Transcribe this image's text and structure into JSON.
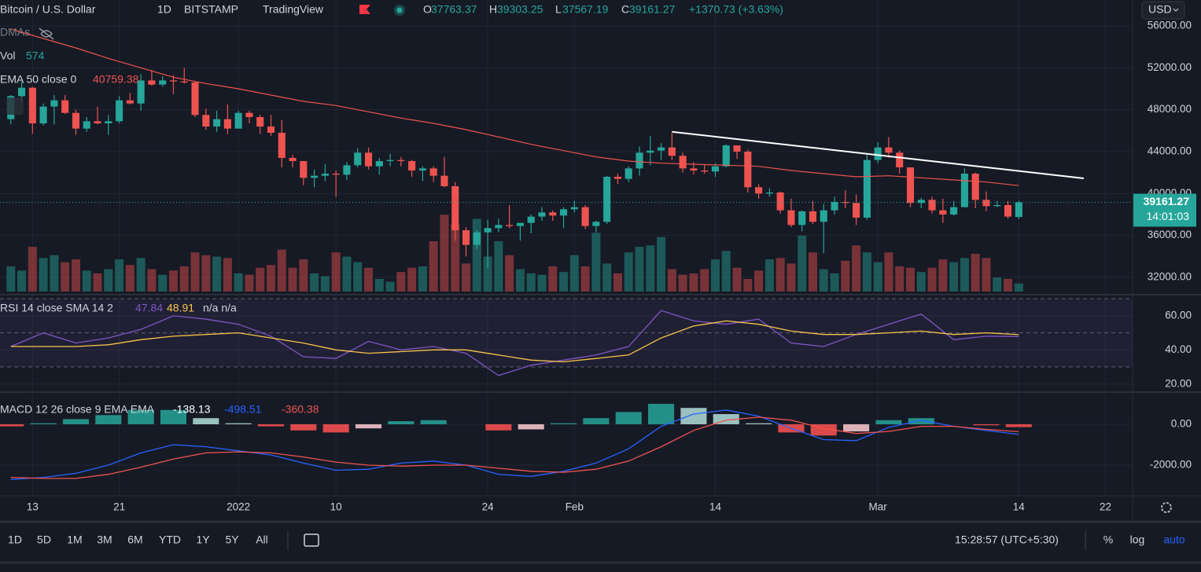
{
  "header": {
    "symbol": "Bitcoin / U.S. Dollar",
    "interval": "1D",
    "exchange": "BITSTAMP",
    "source": "TradingView",
    "ohlc": [
      {
        "label": "O",
        "value": "37763.37"
      },
      {
        "label": "H",
        "value": "39303.25"
      },
      {
        "label": "L",
        "value": "37567.19"
      },
      {
        "label": "C",
        "value": "39161.27"
      }
    ],
    "change": "+1370.73 (+3.63%)",
    "currency": "USD"
  },
  "toolbar": {
    "ranges": [
      "1D",
      "5D",
      "1M",
      "3M",
      "6M",
      "YTD",
      "1Y",
      "5Y",
      "All"
    ],
    "clock": "15:28:57 (UTC+5:30)",
    "scale_buttons": [
      "%",
      "log",
      "auto"
    ]
  },
  "chart_data": [
    {
      "type": "candlestick",
      "legends": [
        {
          "label": "DMAs"
        },
        {
          "label": "Vol",
          "value": "574"
        },
        {
          "label": "EMA 50 close 0",
          "value": "40759.38"
        }
      ],
      "last_price_label": "39161.27",
      "countdown": "14:01:03",
      "xlim": [
        -3,
        101.5
      ],
      "xticks": [
        {
          "value": 0,
          "label": "13"
        },
        {
          "value": 8,
          "label": "21"
        },
        {
          "value": 19,
          "label": "2022"
        },
        {
          "value": 28,
          "label": "10"
        },
        {
          "value": 42,
          "label": "24"
        },
        {
          "value": 50,
          "label": "Feb"
        },
        {
          "value": 63,
          "label": "14"
        },
        {
          "value": 78,
          "label": "Mar"
        },
        {
          "value": 91,
          "label": "14"
        },
        {
          "value": 99,
          "label": "22"
        }
      ],
      "ylim": [
        30575,
        58475
      ],
      "yticks": [
        {
          "value": 56000,
          "label": "56000.00"
        },
        {
          "value": 52000,
          "label": "52000.00"
        },
        {
          "value": 48000,
          "label": "48000.00"
        },
        {
          "value": 44000,
          "label": "44000.00"
        },
        {
          "value": 40000,
          "label": "40000.00"
        },
        {
          "value": 36000,
          "label": "36000.00"
        },
        {
          "value": 32000,
          "label": "32000.00"
        }
      ],
      "up_color": "#26a69a",
      "down_color": "#ef5350",
      "vlim": [
        0,
        9000
      ],
      "x": [
        -2,
        -1,
        0,
        1,
        2,
        3,
        4,
        5,
        6,
        7,
        8,
        9,
        10,
        11,
        12,
        13,
        14,
        15,
        16,
        17,
        18,
        19,
        20,
        21,
        22,
        23,
        24,
        25,
        26,
        27,
        28,
        29,
        30,
        31,
        32,
        33,
        34,
        35,
        36,
        37,
        38,
        39,
        40,
        41,
        42,
        43,
        44,
        45,
        46,
        47,
        48,
        49,
        50,
        51,
        52,
        53,
        54,
        55,
        56,
        57,
        58,
        59,
        60,
        61,
        62,
        63,
        64,
        65,
        66,
        67,
        68,
        69,
        70,
        71,
        72,
        73,
        74,
        75,
        76,
        77,
        78,
        79,
        80,
        81,
        82,
        83,
        84,
        85,
        86,
        87,
        88,
        89,
        90,
        91
      ],
      "ohlc": [
        [
          47100,
          49400,
          46600,
          49300
        ],
        [
          49300,
          50700,
          48700,
          50100
        ],
        [
          50100,
          50200,
          45700,
          46700
        ],
        [
          46700,
          48600,
          46500,
          48300
        ],
        [
          48300,
          49400,
          46600,
          48900
        ],
        [
          48900,
          49400,
          47600,
          47700
        ],
        [
          47700,
          48000,
          45600,
          46200
        ],
        [
          46200,
          47300,
          45900,
          46900
        ],
        [
          46900,
          48300,
          46600,
          46700
        ],
        [
          46700,
          47500,
          45600,
          46900
        ],
        [
          46900,
          49300,
          46700,
          48900
        ],
        [
          48900,
          49600,
          48500,
          48600
        ],
        [
          48600,
          51400,
          47900,
          50800
        ],
        [
          50800,
          51800,
          50300,
          50400
        ],
        [
          50400,
          51200,
          50200,
          50800
        ],
        [
          50800,
          51300,
          49500,
          50700
        ],
        [
          50700,
          52000,
          50500,
          50600
        ],
        [
          50600,
          50700,
          47300,
          47500
        ],
        [
          47500,
          48100,
          46100,
          46400
        ],
        [
          46400,
          47900,
          45900,
          47100
        ],
        [
          47100,
          48500,
          45700,
          46200
        ],
        [
          46200,
          47900,
          46200,
          47700
        ],
        [
          47700,
          47900,
          46700,
          47300
        ],
        [
          47300,
          47500,
          45700,
          46400
        ],
        [
          46400,
          47500,
          45500,
          45800
        ],
        [
          45800,
          47000,
          42500,
          43400
        ],
        [
          43400,
          43700,
          42500,
          43100
        ],
        [
          43100,
          43100,
          40800,
          41500
        ],
        [
          41500,
          42300,
          40600,
          41700
        ],
        [
          41700,
          42800,
          41200,
          41900
        ],
        [
          41900,
          42200,
          39700,
          41800
        ],
        [
          41800,
          43000,
          41300,
          42700
        ],
        [
          42700,
          44300,
          42500,
          43900
        ],
        [
          43900,
          44400,
          42300,
          42600
        ],
        [
          42600,
          43400,
          41800,
          43100
        ],
        [
          43100,
          43800,
          42600,
          43200
        ],
        [
          43200,
          43500,
          42600,
          43100
        ],
        [
          43100,
          43200,
          41600,
          42200
        ],
        [
          42200,
          42600,
          41200,
          42400
        ],
        [
          42400,
          42600,
          41100,
          41700
        ],
        [
          41700,
          43500,
          40600,
          40700
        ],
        [
          40700,
          41100,
          35500,
          36500
        ],
        [
          36500,
          36800,
          34000,
          35100
        ],
        [
          35100,
          36500,
          34700,
          36300
        ],
        [
          36300,
          37500,
          32900,
          36700
        ],
        [
          36700,
          37600,
          36300,
          37000
        ],
        [
          37000,
          38900,
          36700,
          36900
        ],
        [
          36900,
          37200,
          35500,
          37200
        ],
        [
          37200,
          38000,
          36200,
          37800
        ],
        [
          37800,
          38700,
          37400,
          38200
        ],
        [
          38200,
          38400,
          37400,
          37900
        ],
        [
          37900,
          38700,
          36700,
          38500
        ],
        [
          38500,
          39300,
          38200,
          38700
        ],
        [
          38700,
          38900,
          36600,
          36900
        ],
        [
          36900,
          37400,
          36300,
          37300
        ],
        [
          37300,
          41700,
          37100,
          41600
        ],
        [
          41600,
          41900,
          40900,
          41400
        ],
        [
          41400,
          42600,
          41100,
          42400
        ],
        [
          42400,
          44500,
          41700,
          43900
        ],
        [
          43900,
          45500,
          42700,
          44100
        ],
        [
          44100,
          44800,
          43200,
          44400
        ],
        [
          44400,
          45800,
          43200,
          43600
        ],
        [
          43600,
          43900,
          42000,
          42400
        ],
        [
          42400,
          43000,
          41800,
          42200
        ],
        [
          42200,
          42800,
          41900,
          42100
        ],
        [
          42100,
          42900,
          41600,
          42600
        ],
        [
          42600,
          44700,
          42500,
          44600
        ],
        [
          44600,
          44600,
          43300,
          44000
        ],
        [
          44000,
          44200,
          40100,
          40600
        ],
        [
          40600,
          40900,
          39500,
          40000
        ],
        [
          40000,
          40500,
          39700,
          40100
        ],
        [
          40100,
          40200,
          38100,
          38400
        ],
        [
          38400,
          39500,
          36800,
          37000
        ],
        [
          37000,
          38400,
          36400,
          38300
        ],
        [
          38300,
          39300,
          37100,
          37300
        ],
        [
          37300,
          39000,
          34300,
          38400
        ],
        [
          38400,
          39700,
          38000,
          39200
        ],
        [
          39200,
          40300,
          38600,
          39100
        ],
        [
          39100,
          39900,
          37000,
          37700
        ],
        [
          37700,
          43800,
          37500,
          43200
        ],
        [
          43200,
          44900,
          42900,
          44400
        ],
        [
          44400,
          45400,
          43400,
          43900
        ],
        [
          43900,
          44100,
          41900,
          42500
        ],
        [
          42500,
          42500,
          38700,
          39100
        ],
        [
          39100,
          39600,
          38600,
          39400
        ],
        [
          39400,
          39700,
          38100,
          38400
        ],
        [
          38400,
          39500,
          37200,
          38000
        ],
        [
          38000,
          39300,
          37900,
          38700
        ],
        [
          38700,
          42400,
          38700,
          41900
        ],
        [
          41900,
          42000,
          38600,
          39400
        ],
        [
          39400,
          40200,
          38300,
          38800
        ],
        [
          38800,
          39300,
          38700,
          38900
        ],
        [
          38900,
          39300,
          37600,
          37800
        ],
        [
          37763.37,
          39303.25,
          37567.19,
          39161.27
        ]
      ],
      "volume": [
        1800,
        1500,
        3200,
        2400,
        2600,
        2100,
        2300,
        1500,
        1300,
        1600,
        2300,
        1900,
        2400,
        1600,
        1200,
        1500,
        1800,
        2800,
        2600,
        2500,
        2400,
        1300,
        1200,
        1700,
        1900,
        3000,
        1700,
        2300,
        1300,
        1100,
        2800,
        2500,
        2100,
        1700,
        900,
        700,
        1400,
        1700,
        1800,
        3600,
        5500,
        4800,
        2000,
        5200,
        2500,
        3600,
        2600,
        1600,
        1300,
        1200,
        1800,
        1400,
        2600,
        1800,
        4200,
        2000,
        1300,
        2800,
        3200,
        3300,
        3900,
        1600,
        1200,
        1300,
        1600,
        2300,
        2900,
        1700,
        900,
        1500,
        2300,
        2400,
        2000,
        4000,
        2800,
        1600,
        1300,
        2200,
        3300,
        2800,
        2100,
        2800,
        1800,
        1700,
        1400,
        1700,
        2300,
        2100,
        2400,
        2700,
        2400,
        1000,
        900,
        574
      ],
      "series": [
        {
          "color": "#ef5350",
          "x": [
            -2,
            1,
            4,
            7,
            10,
            13,
            16,
            19,
            22,
            25,
            28,
            31,
            34,
            37,
            40,
            43,
            46,
            49,
            52,
            55,
            58,
            61,
            64,
            67,
            70,
            73,
            76,
            79,
            82,
            85,
            88,
            91
          ],
          "values": [
            55700,
            54800,
            53900,
            52900,
            52000,
            51100,
            50500,
            50000,
            49400,
            48800,
            48400,
            47800,
            47200,
            46700,
            46100,
            45400,
            44700,
            44100,
            43500,
            43100,
            42900,
            42800,
            42700,
            42600,
            42200,
            41900,
            41600,
            41700,
            41500,
            41300,
            41100,
            40759.38
          ]
        },
        {
          "color": "#ffffff",
          "x": [
            59,
            97
          ],
          "values": [
            45900,
            41450
          ]
        }
      ]
    },
    {
      "type": "line",
      "title": "RSI 14 close SMA 14 2",
      "legend_values": [
        "47.84",
        "48.91",
        "n/a n/a"
      ],
      "xlim": [
        -3,
        101.5
      ],
      "ylim": [
        16.2,
        71.9
      ],
      "yticks": [
        {
          "value": 60,
          "label": "60.00"
        },
        {
          "value": 40,
          "label": "40.00"
        },
        {
          "value": 20,
          "label": "20.00"
        }
      ],
      "levels": [
        70,
        50,
        30
      ],
      "x": [
        -2,
        1,
        4,
        7,
        10,
        13,
        16,
        19,
        22,
        25,
        28,
        31,
        34,
        37,
        40,
        43,
        46,
        49,
        52,
        55,
        58,
        61,
        64,
        67,
        70,
        73,
        76,
        79,
        82,
        85,
        88,
        91
      ],
      "series": [
        {
          "color": "#7e57c2",
          "values": [
            42,
            50,
            44,
            47,
            52,
            60,
            58,
            55,
            48,
            36,
            35,
            45,
            40,
            42,
            38,
            25,
            31,
            34,
            37,
            42,
            63,
            57,
            55,
            58,
            44,
            42,
            49,
            55,
            61,
            46,
            48,
            47.84
          ]
        },
        {
          "color": "#f7c548",
          "values": [
            42,
            42,
            42,
            43,
            46,
            48,
            49,
            50,
            47,
            44,
            40,
            38,
            39,
            40,
            40,
            37,
            34,
            33,
            35,
            37,
            47,
            54,
            57,
            55,
            51,
            49,
            49,
            50,
            51,
            49,
            50,
            48.91
          ]
        }
      ]
    },
    {
      "type": "macd",
      "title": "MACD 12 26 close 9 EMA EMA",
      "legend_values": [
        "-138.13",
        "-498.51",
        "-360.38"
      ],
      "xlim": [
        -3,
        101.5
      ],
      "ylim": [
        -3462,
        1538
      ],
      "yticks": [
        {
          "value": 0,
          "label": "0.00"
        },
        {
          "value": -2000,
          "label": "-2000.00"
        }
      ],
      "x": [
        -2,
        1,
        4,
        7,
        10,
        13,
        16,
        19,
        22,
        25,
        28,
        31,
        34,
        37,
        40,
        43,
        46,
        49,
        52,
        55,
        58,
        61,
        64,
        67,
        70,
        73,
        76,
        79,
        82,
        85,
        88,
        91
      ],
      "histogram": [
        -100,
        50,
        250,
        450,
        700,
        700,
        300,
        50,
        -100,
        -300,
        -400,
        -200,
        150,
        200,
        0,
        -300,
        -250,
        50,
        300,
        600,
        1000,
        800,
        500,
        50,
        -400,
        -550,
        -350,
        200,
        300,
        0,
        -50,
        -138.13
      ],
      "series": [
        {
          "color": "#2962ff",
          "values": [
            -2700,
            -2600,
            -2400,
            -2000,
            -1400,
            -1000,
            -1100,
            -1300,
            -1500,
            -1900,
            -2250,
            -2200,
            -1900,
            -1800,
            -2000,
            -2450,
            -2550,
            -2300,
            -1900,
            -1200,
            -100,
            500,
            700,
            400,
            -200,
            -750,
            -800,
            -150,
            200,
            -100,
            -300,
            -498.51
          ]
        },
        {
          "color": "#ef5350",
          "values": [
            -2600,
            -2650,
            -2650,
            -2450,
            -2100,
            -1700,
            -1400,
            -1350,
            -1400,
            -1600,
            -1850,
            -2000,
            -2050,
            -2000,
            -2000,
            -2150,
            -2300,
            -2350,
            -2200,
            -1800,
            -1100,
            -300,
            200,
            350,
            200,
            -200,
            -450,
            -350,
            -100,
            -100,
            -250,
            -360.38
          ]
        }
      ]
    }
  ]
}
